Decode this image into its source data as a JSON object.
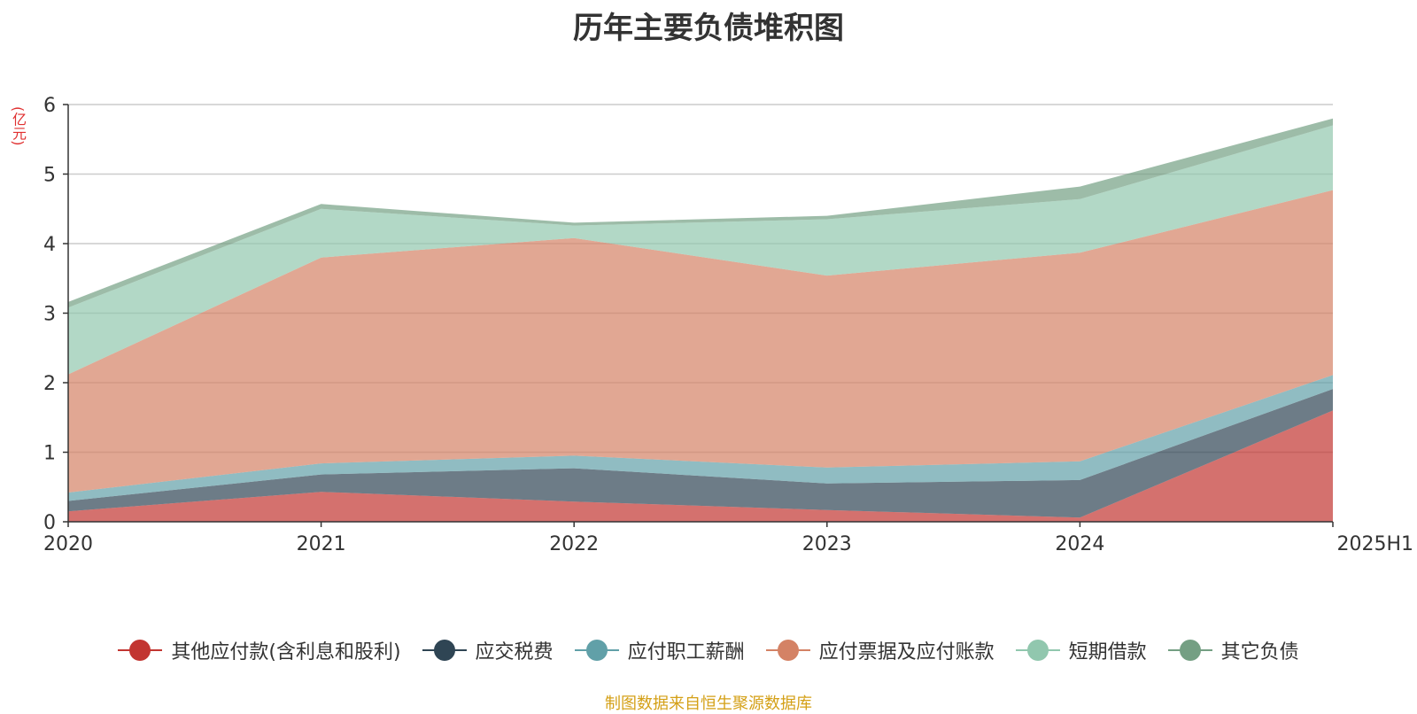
{
  "chart_data": {
    "type": "area",
    "title": "历年主要负债堆积图",
    "ylabel": "(亿元)",
    "xlabel": "",
    "categories": [
      "2020",
      "2021",
      "2022",
      "2023",
      "2024",
      "2025H1"
    ],
    "ylim": [
      0,
      6
    ],
    "yticks": [
      "0",
      "1",
      "2",
      "3",
      "4",
      "5",
      "6"
    ],
    "stacked": true,
    "grid": true,
    "legend_position": "bottom",
    "series": [
      {
        "name": "其他应付款(含利息和股利)",
        "color": "#c23531",
        "values": [
          0.15,
          0.43,
          0.29,
          0.17,
          0.06,
          1.6
        ]
      },
      {
        "name": "应交税费",
        "color": "#2f4554",
        "values": [
          0.15,
          0.25,
          0.48,
          0.38,
          0.54,
          0.31
        ]
      },
      {
        "name": "应付职工薪酬",
        "color": "#61a0a8",
        "values": [
          0.12,
          0.16,
          0.18,
          0.23,
          0.27,
          0.2
        ]
      },
      {
        "name": "应付票据及应付账款",
        "color": "#d48265",
        "values": [
          1.7,
          2.96,
          3.13,
          2.76,
          3.0,
          2.66
        ]
      },
      {
        "name": "短期借款",
        "color": "#91c7ae",
        "values": [
          0.96,
          0.7,
          0.18,
          0.81,
          0.77,
          0.93
        ]
      },
      {
        "name": "其它负债",
        "color": "#749f83",
        "values": [
          0.08,
          0.07,
          0.04,
          0.05,
          0.18,
          0.1
        ]
      }
    ]
  },
  "source_note": "制图数据来自恒生聚源数据库"
}
